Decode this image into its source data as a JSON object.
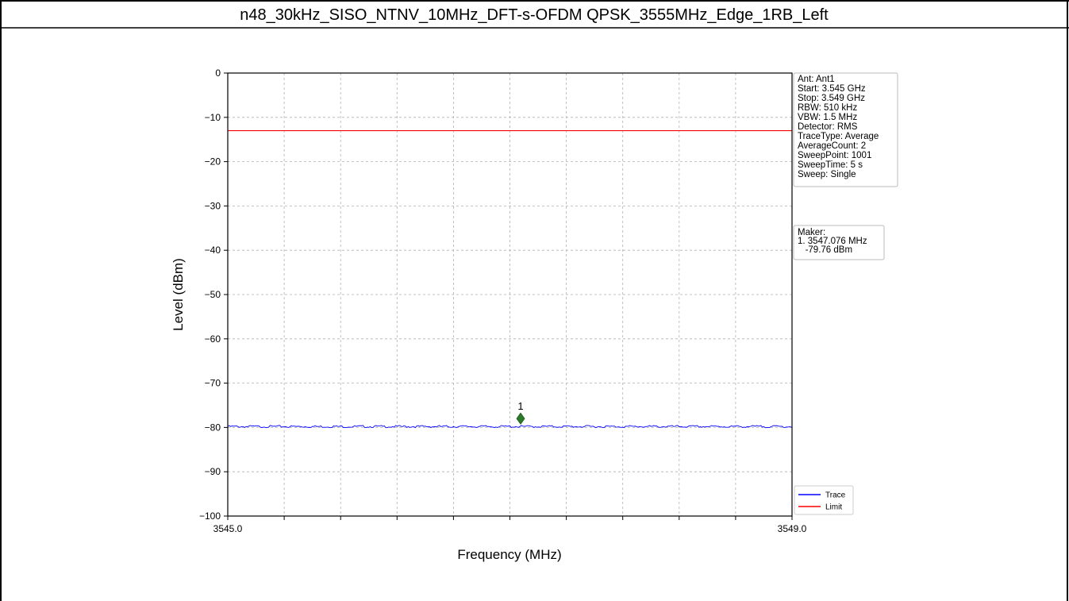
{
  "title": "n48_30kHz_SISO_NTNV_10MHz_DFT-s-OFDM QPSK_3555MHz_Edge_1RB_Left",
  "chart_data": {
    "type": "line",
    "xlabel": "Frequency (MHz)",
    "ylabel": "Level (dBm)",
    "xlim": [
      3545.0,
      3549.0
    ],
    "ylim": [
      -100,
      0
    ],
    "x_tick_labels": [
      "3545.0",
      "3549.0"
    ],
    "x_ticks_count": 10,
    "y_ticks": [
      0,
      -10,
      -20,
      -30,
      -40,
      -50,
      -60,
      -70,
      -80,
      -90,
      -100
    ],
    "y_tick_labels": [
      "0",
      "−10",
      "−20",
      "−30",
      "−40",
      "−50",
      "−60",
      "−70",
      "−80",
      "−90",
      "−100"
    ],
    "grid": true,
    "series": [
      {
        "name": "Trace",
        "color": "#0000ff",
        "x": [
          3545.0,
          3549.0
        ],
        "y": [
          -79.8,
          -79.8
        ]
      },
      {
        "name": "Limit",
        "color": "#ff0000",
        "x": [
          3545.0,
          3549.0
        ],
        "y": [
          -13.0,
          -13.0
        ]
      }
    ],
    "marker": {
      "label": "1",
      "x": 3547.076,
      "y": -78.0,
      "color": "#2a7a2a"
    },
    "legend_placement": "bottom-right",
    "info_box": [
      "Ant: Ant1",
      "Start: 3.545 GHz",
      "Stop: 3.549 GHz",
      "RBW: 510 kHz",
      "VBW: 1.5 MHz",
      "Detector: RMS",
      "TraceType: Average",
      "AverageCount: 2",
      "SweepPoint: 1001",
      "SweepTime: 5 s",
      "Sweep: Single"
    ],
    "marker_box": [
      "Maker:",
      "1. 3547.076 MHz",
      "   -79.76 dBm"
    ]
  }
}
